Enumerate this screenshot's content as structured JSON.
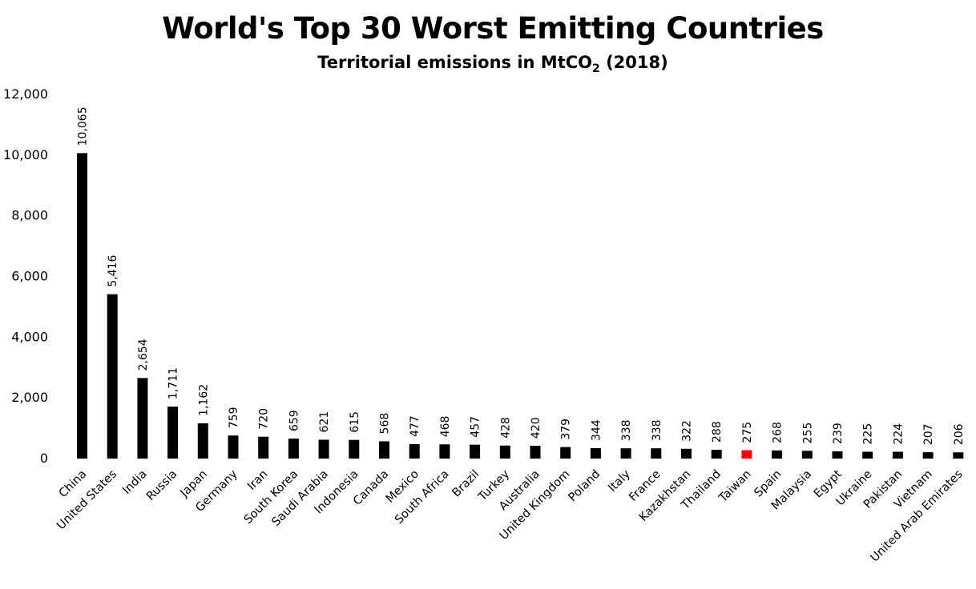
{
  "chart_data": {
    "type": "bar",
    "title": "World's Top 30 Worst Emitting Countries",
    "subtitle": {
      "prefix": "Territorial emissions in MtCO",
      "subscript": "2",
      "suffix": " (2018)"
    },
    "xlabel": "",
    "ylabel": "",
    "ylim": [
      0,
      12000
    ],
    "yticks": [
      "0",
      "2,000",
      "4,000",
      "6,000",
      "8,000",
      "10,000",
      "12,000"
    ],
    "ytick_values": [
      0,
      2000,
      4000,
      6000,
      8000,
      10000,
      12000
    ],
    "grid": false,
    "legend": "none",
    "bar_color": "#000000",
    "highlight_color": "#ff0000",
    "highlight_category": "Taiwan",
    "categories": [
      "China",
      "United States",
      "India",
      "Russia",
      "Japan",
      "Germany",
      "Iran",
      "South Korea",
      "Saudi Arabia",
      "Indonesia",
      "Canada",
      "Mexico",
      "South Africa",
      "Brazil",
      "Turkey",
      "Australia",
      "United Kingdom",
      "Poland",
      "Italy",
      "France",
      "Kazakhstan",
      "Thailand",
      "Taiwan",
      "Spain",
      "Malaysia",
      "Egypt",
      "Ukraine",
      "Pakistan",
      "Vietnam",
      "United Arab Emirates"
    ],
    "values": [
      10065,
      5416,
      2654,
      1711,
      1162,
      759,
      720,
      659,
      621,
      615,
      568,
      477,
      468,
      457,
      428,
      420,
      379,
      344,
      338,
      338,
      322,
      288,
      275,
      268,
      255,
      239,
      225,
      224,
      207,
      206
    ],
    "value_labels": [
      "10,065",
      "5,416",
      "2,654",
      "1,711",
      "1,162",
      "759",
      "720",
      "659",
      "621",
      "615",
      "568",
      "477",
      "468",
      "457",
      "428",
      "420",
      "379",
      "344",
      "338",
      "338",
      "322",
      "288",
      "275",
      "268",
      "255",
      "239",
      "225",
      "224",
      "207",
      "206"
    ]
  }
}
